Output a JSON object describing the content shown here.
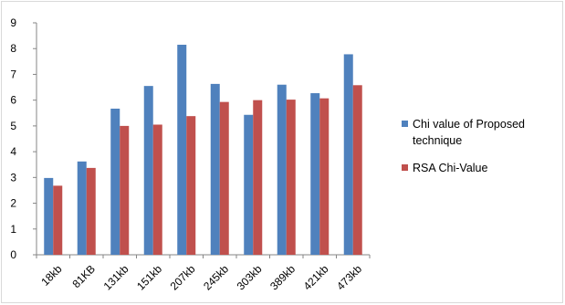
{
  "chart_data": {
    "type": "bar",
    "categories": [
      "18kb",
      "81KB",
      "131kb",
      "151kb",
      "207kb",
      "245kb",
      "303kb",
      "389kb",
      "421kb",
      "473kb"
    ],
    "series": [
      {
        "name": "Chi value of Proposed technique",
        "legend_lines": [
          "Chi value of Proposed",
          "technique"
        ],
        "color": "#4f81bd",
        "values": [
          2.98,
          3.62,
          5.67,
          6.55,
          8.15,
          6.63,
          5.43,
          6.6,
          6.27,
          7.78
        ]
      },
      {
        "name": "RSA Chi-Value",
        "legend_lines": [
          "RSA Chi-Value"
        ],
        "color": "#c0504d",
        "values": [
          2.68,
          3.37,
          5.0,
          5.05,
          5.38,
          5.93,
          6.0,
          6.02,
          6.07,
          6.58
        ]
      }
    ],
    "ylim": [
      0,
      9
    ],
    "yticks": [
      0,
      1,
      2,
      3,
      4,
      5,
      6,
      7,
      8,
      9
    ],
    "grid": false,
    "legend_position": "right"
  }
}
